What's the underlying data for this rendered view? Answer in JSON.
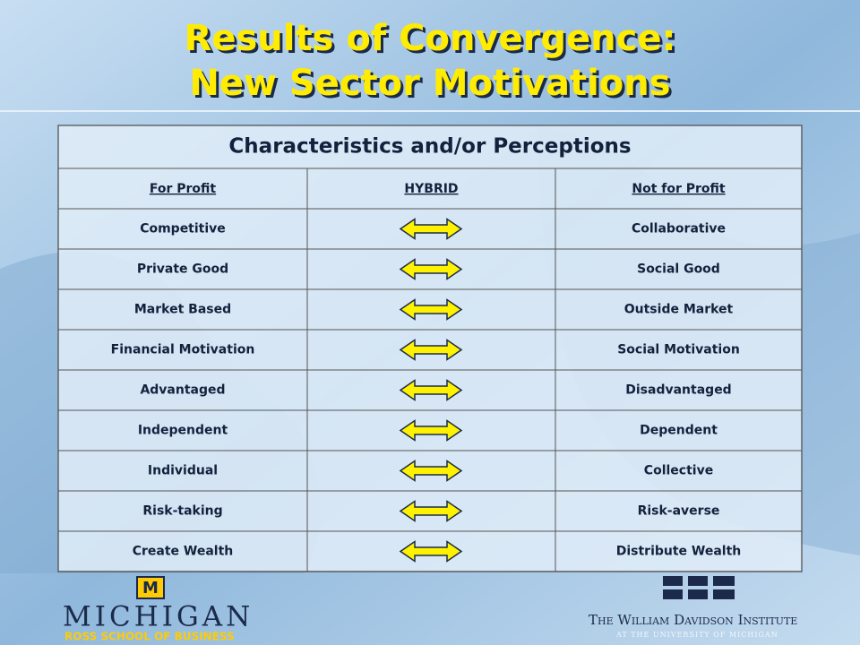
{
  "title": [
    "Results of Convergence:",
    "New Sector Motivations"
  ],
  "table": {
    "caption": "Characteristics and/or Perceptions",
    "columns": [
      "For Profit",
      "HYBRID",
      "Not for Profit"
    ],
    "rows": [
      [
        "Competitive",
        "Collaborative"
      ],
      [
        "Private Good",
        "Social Good"
      ],
      [
        "Market Based",
        "Outside Market"
      ],
      [
        "Financial Motivation",
        "Social Motivation"
      ],
      [
        "Advantaged",
        "Disadvantaged"
      ],
      [
        "Independent",
        "Dependent"
      ],
      [
        "Individual",
        "Collective"
      ],
      [
        "Risk-taking",
        "Risk-averse"
      ],
      [
        "Create Wealth",
        "Distribute Wealth"
      ]
    ]
  },
  "footer": {
    "left": {
      "mark": "M",
      "name": "MICHIGAN",
      "school": "ROSS SCHOOL OF BUSINESS"
    },
    "right": {
      "name": "The William Davidson Institute",
      "sub": "AT THE UNIVERSITY OF MICHIGAN"
    }
  }
}
